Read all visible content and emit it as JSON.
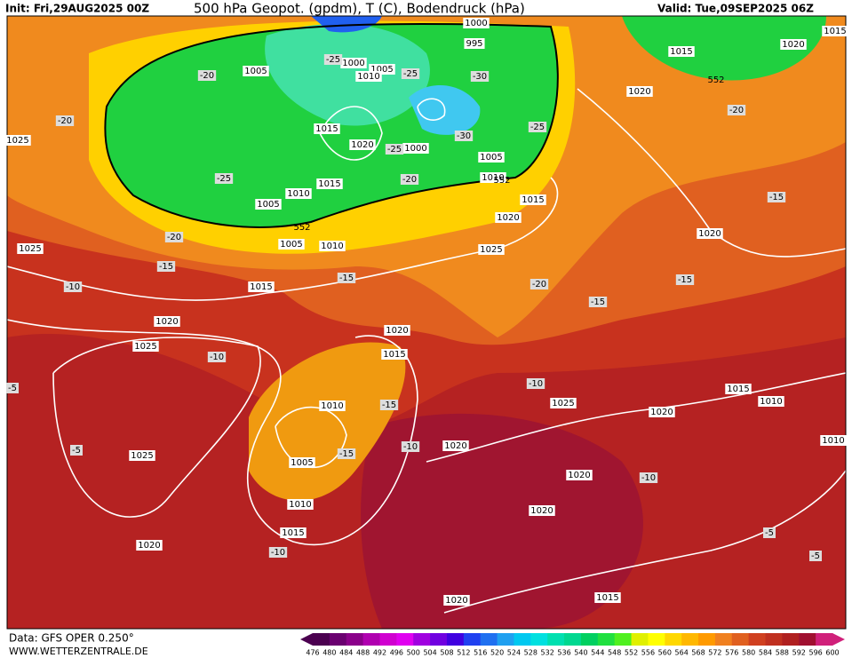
{
  "header": {
    "init": "Init: Fri,29AUG2025 00Z",
    "title": "500 hPa Geopot. (gpdm), T (C), Bodendruck (hPa)",
    "valid": "Valid: Tue,09SEP2025 06Z"
  },
  "footer": {
    "data": "Data: GFS OPER 0.250°",
    "site": "WWW.WETTERZENTRALE.DE"
  },
  "labels": {
    "isobars": [
      1005,
      1000,
      1005,
      1010,
      1000,
      995,
      1015,
      1020,
      1000,
      1005,
      1010,
      1010,
      1015,
      1005,
      1015,
      1020,
      1025,
      1005,
      1010,
      1015,
      1025,
      1025,
      1020,
      1025,
      1020,
      1015,
      1010,
      1005,
      1010,
      1015,
      1020,
      1025,
      1020,
      1025,
      1020,
      1020,
      1020,
      1015,
      1020,
      1015,
      1010,
      1010,
      1020,
      1020,
      1015,
      1020,
      1015
    ],
    "temperatures": [
      -20,
      -20,
      -25,
      -20,
      -15,
      -10,
      -25,
      -25,
      -30,
      -30,
      -25,
      -25,
      -20,
      -15,
      -20,
      -15,
      -15,
      -15,
      -20,
      -10,
      -5,
      -5,
      -15,
      -15,
      -10,
      -10,
      -10,
      -10,
      -5,
      -5
    ],
    "thickness": [
      552,
      552,
      552
    ]
  },
  "colorbar": {
    "labels": [
      476,
      480,
      484,
      488,
      492,
      496,
      500,
      504,
      508,
      512,
      516,
      520,
      524,
      528,
      532,
      536,
      540,
      544,
      548,
      552,
      556,
      560,
      564,
      568,
      572,
      576,
      580,
      584,
      588,
      592,
      596,
      600
    ],
    "colors": [
      "#4b0050",
      "#6a0070",
      "#8a008a",
      "#b000b0",
      "#d000d0",
      "#e000f0",
      "#a000e0",
      "#7000e0",
      "#4000e0",
      "#2040f0",
      "#2070f0",
      "#20a0f0",
      "#00c8f0",
      "#00e0e0",
      "#00e0b0",
      "#00d890",
      "#00d060",
      "#20e040",
      "#50f020",
      "#e0f000",
      "#ffff00",
      "#ffd800",
      "#ffb800",
      "#ff9a00",
      "#f08020",
      "#e06020",
      "#d04020",
      "#c03020",
      "#b02020",
      "#a01030",
      "#d0207a"
    ]
  }
}
